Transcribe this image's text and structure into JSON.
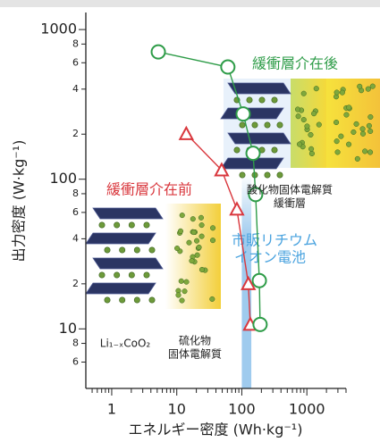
{
  "chart_data": {
    "type": "scatter-line",
    "x_label": "エネルギー密度 (Wh·kg⁻¹)",
    "y_label": "出力密度 (W·kg⁻¹)",
    "log_x": true,
    "log_y": true,
    "xlim": [
      0.4,
      4000
    ],
    "ylim": [
      4,
      1300
    ],
    "xticks": [
      1,
      10,
      100,
      1000
    ],
    "xminorticks": [
      0.5,
      0.6,
      0.7,
      0.8,
      0.9,
      2,
      3,
      4,
      5,
      6,
      7,
      8,
      9,
      20,
      30,
      40,
      50,
      60,
      70,
      80,
      90,
      200,
      300,
      400,
      500,
      600,
      700,
      800,
      900,
      2000,
      3000,
      4000
    ],
    "yticks": [
      1000,
      {
        "value": 800,
        "label": "8"
      },
      {
        "value": 600,
        "label": "6"
      },
      {
        "value": 400,
        "label": "4"
      },
      {
        "value": 200,
        "label": "2"
      },
      100,
      {
        "value": 80,
        "label": "8"
      },
      {
        "value": 60,
        "label": "6"
      },
      {
        "value": 40,
        "label": "4"
      },
      {
        "value": 20,
        "label": "2"
      },
      10,
      {
        "value": 8,
        "label": "8"
      },
      {
        "value": 6,
        "label": "6"
      }
    ],
    "series": [
      {
        "name": "緩衝層介在前",
        "color": "#d9373d",
        "marker": "triangle",
        "x": [
          14,
          49,
          84,
          126,
          135
        ],
        "values": [
          201,
          115,
          63,
          20,
          10.7
        ]
      },
      {
        "name": "緩衝層介在後",
        "color": "#2e9c48",
        "marker": "circle",
        "x": [
          5.2,
          61,
          105,
          149,
          163,
          186,
          191
        ],
        "values": [
          709,
          562,
          273,
          149,
          79,
          21,
          10.7
        ]
      }
    ],
    "band": {
      "label": [
        "市販リチウム",
        "イオン電池"
      ],
      "color": "#9fcbee",
      "label_color": "#4aa3df",
      "x": [
        100,
        140
      ],
      "y": [
        4,
        110
      ]
    },
    "annotations": {
      "oxide": [
        "酸化物固体電解質",
        "緩衝層"
      ],
      "sulfide": [
        "硫化物",
        "固体電解質"
      ],
      "cathode": "Li₁₋ₓCoO₂"
    }
  }
}
